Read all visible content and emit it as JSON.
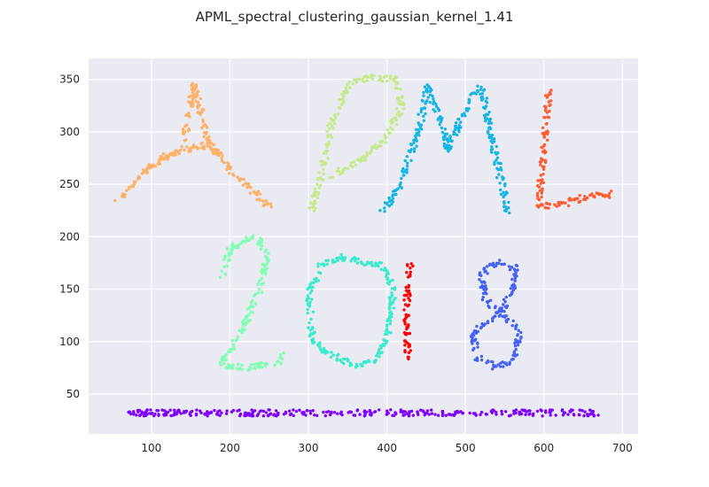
{
  "chart_data": {
    "type": "scatter",
    "title": "APML_spectral_clustering_gaussian_kernel_1.41",
    "xlabel": "",
    "ylabel": "",
    "xlim": [
      20,
      720
    ],
    "ylim": [
      12,
      370
    ],
    "xticks": [
      100,
      200,
      300,
      400,
      500,
      600,
      700
    ],
    "yticks": [
      50,
      100,
      150,
      200,
      250,
      300,
      350
    ],
    "grid": true,
    "legend": "none",
    "background": "#eaeaf2",
    "clusters": [
      {
        "label": "A",
        "color": "#ffb064",
        "strokes": [
          [
            [
              55,
              233
            ],
            [
              100,
              268
            ],
            [
              140,
              285
            ],
            [
              155,
              345
            ]
          ],
          [
            [
              155,
              345
            ],
            [
              172,
              290
            ],
            [
              205,
              260
            ],
            [
              250,
              230
            ]
          ],
          [
            [
              115,
              276
            ],
            [
              160,
              287
            ],
            [
              192,
              277
            ]
          ]
        ]
      },
      {
        "label": "P",
        "color": "#c6ea8b",
        "strokes": [
          [
            [
              305,
              225
            ],
            [
              318,
              265
            ],
            [
              330,
              310
            ],
            [
              352,
              345
            ],
            [
              378,
              352
            ]
          ],
          [
            [
              378,
              352
            ],
            [
              412,
              350
            ],
            [
              420,
              325
            ],
            [
              400,
              295
            ],
            [
              370,
              275
            ],
            [
              330,
              258
            ]
          ]
        ]
      },
      {
        "label": "M",
        "color": "#16b6e4",
        "strokes": [
          [
            [
              395,
              223
            ],
            [
              420,
              255
            ],
            [
              440,
              300
            ],
            [
              452,
              343
            ]
          ],
          [
            [
              452,
              343
            ],
            [
              470,
              310
            ],
            [
              478,
              280
            ],
            [
              490,
              305
            ],
            [
              505,
              330
            ],
            [
              520,
              343
            ]
          ],
          [
            [
              520,
              343
            ],
            [
              532,
              300
            ],
            [
              545,
              255
            ],
            [
              555,
              222
            ]
          ]
        ]
      },
      {
        "label": "L",
        "color": "#ff5d31",
        "strokes": [
          [
            [
              606,
              340
            ],
            [
              600,
              285
            ],
            [
              594,
              237
            ]
          ],
          [
            [
              587,
              229
            ],
            [
              620,
              230
            ],
            [
              650,
              238
            ],
            [
              690,
              241
            ]
          ]
        ]
      },
      {
        "label": "2",
        "color": "#80ffb4",
        "strokes": [
          [
            [
              190,
              162
            ],
            [
              200,
              190
            ],
            [
              230,
              200
            ],
            [
              248,
              185
            ],
            [
              238,
              150
            ],
            [
              215,
              110
            ],
            [
              190,
              78
            ]
          ],
          [
            [
              190,
              78
            ],
            [
              220,
              75
            ],
            [
              260,
              80
            ],
            [
              270,
              87
            ]
          ]
        ]
      },
      {
        "label": "0",
        "color": "#3aebcd",
        "strokes": [
          [
            [
              345,
              180
            ],
            [
              318,
              175
            ],
            [
              300,
              145
            ],
            [
              305,
              100
            ],
            [
              330,
              87
            ],
            [
              360,
              78
            ],
            [
              385,
              80
            ],
            [
              403,
              112
            ],
            [
              408,
              150
            ],
            [
              395,
              172
            ],
            [
              345,
              180
            ]
          ]
        ]
      },
      {
        "label": "1",
        "color": "#ff0000",
        "strokes": [
          [
            [
              430,
              173
            ],
            [
              425,
              135
            ],
            [
              427,
              85
            ]
          ]
        ]
      },
      {
        "label": "8",
        "color": "#4462f4",
        "strokes": [
          [
            [
              545,
              128
            ],
            [
              560,
              148
            ],
            [
              563,
              170
            ],
            [
              540,
              175
            ],
            [
              520,
              165
            ],
            [
              525,
              140
            ],
            [
              545,
              128
            ],
            [
              568,
              110
            ],
            [
              565,
              85
            ],
            [
              540,
              76
            ],
            [
              515,
              85
            ],
            [
              510,
              108
            ],
            [
              545,
              128
            ]
          ]
        ]
      },
      {
        "label": "base",
        "color": "#8000ff",
        "strokes": [
          [
            [
              70,
              32
            ],
            [
              668,
              32
            ]
          ]
        ]
      }
    ]
  }
}
